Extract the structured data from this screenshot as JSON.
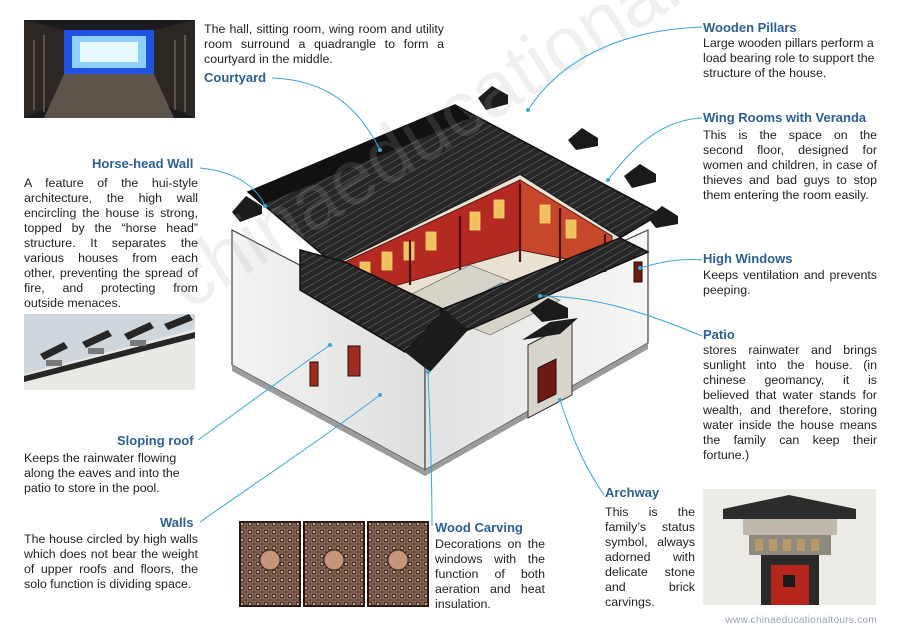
{
  "labels": {
    "courtyard": {
      "title": "Courtyard",
      "text": "The hall, sitting room, wing room and utility room surround a quadrangle to form a courtyard in the middle."
    },
    "horse_head_wall": {
      "title": "Horse-head Wall",
      "text": "A feature of the hui-style architecture, the high wall encircling the house is strong, topped by the “horse head” structure. It separates the various houses from each other, preventing the spread of fire, and protecting from outside menaces."
    },
    "sloping_roof": {
      "title": "Sloping roof",
      "text": "Keeps the rainwater flowing along the eaves and into the patio to store in the pool."
    },
    "walls": {
      "title": "Walls",
      "text": "The house circled by high walls which does not bear the weight of upper roofs and floors, the solo function is dividing space."
    },
    "wood_carving": {
      "title": "Wood Carving",
      "text": "Decorations on the windows with the function of both aeration and heat insulation."
    },
    "wooden_pillars": {
      "title": "Wooden Pillars",
      "text": "Large wooden pillars perform a load bearing role to support the structure of the house."
    },
    "wing_rooms": {
      "title": "Wing Rooms with Veranda",
      "text": "This is the space on the second floor, designed for women and children, in case of thieves and bad guys to stop them entering the room easily."
    },
    "high_windows": {
      "title": "High Windows",
      "text": "Keeps ventilation and prevents peeping."
    },
    "patio": {
      "title": "Patio",
      "text": "stores rainwater and brings sunlight into the house. (in chinese geomancy, it is believed that water stands for wealth, and therefore, storing water inside the house means the family can keep their fortune.)"
    },
    "archway": {
      "title": "Archway",
      "text": "This is the family’s status symbol, always adorned with delicate stone and brick carvings."
    }
  },
  "watermark": "www.chinaeducationaltours.com",
  "colors": {
    "heading": "#2b5f95",
    "leader_line": "#3aa6dc",
    "roof": "#2a2a2a",
    "wall": "#f1f1ef",
    "timber_red": "#a8231d"
  }
}
